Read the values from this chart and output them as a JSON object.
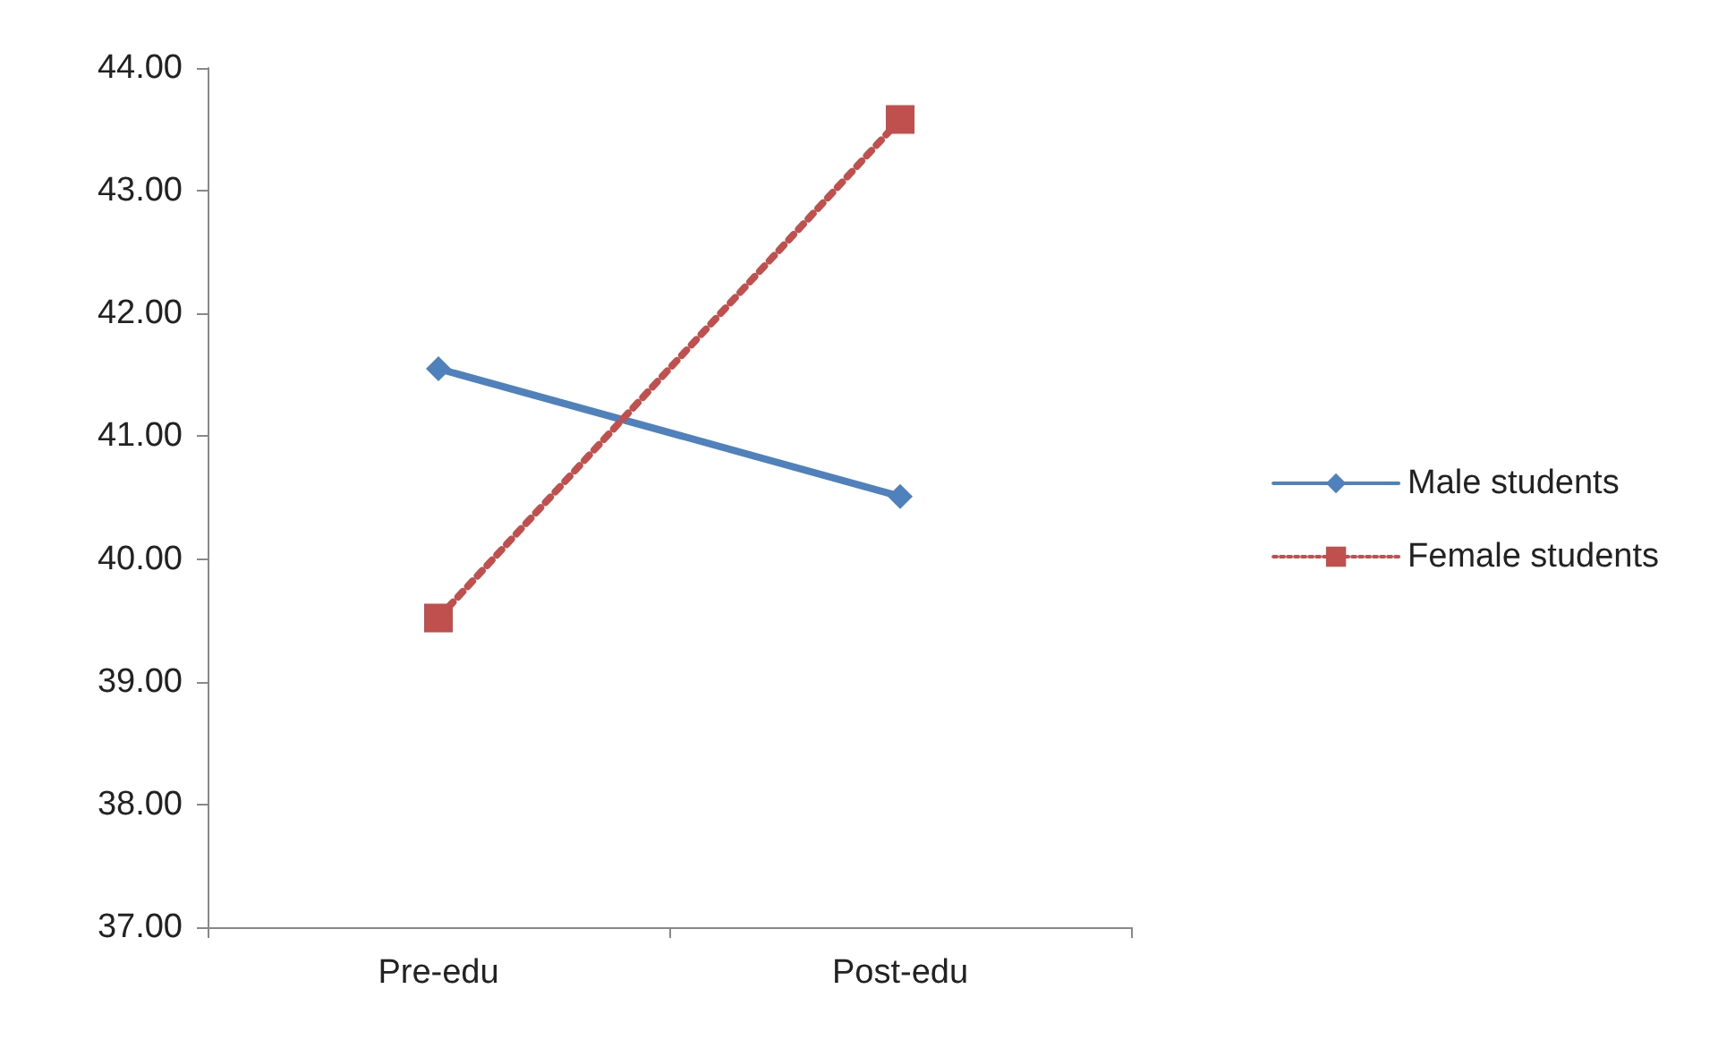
{
  "chart_data": {
    "type": "line",
    "categories": [
      "Pre-edu",
      "Post-edu"
    ],
    "series": [
      {
        "name": "Male students",
        "color": "#4f81bd",
        "values": [
          41.55,
          40.51
        ],
        "marker": "diamond",
        "line_style": "solid"
      },
      {
        "name": "Female students",
        "color": "#c0504d",
        "values": [
          39.52,
          43.58
        ],
        "marker": "square",
        "line_style": "dotted"
      }
    ],
    "ylim": [
      37,
      44
    ],
    "yticks": [
      {
        "value": 37,
        "label": "37.00"
      },
      {
        "value": 38,
        "label": "38.00"
      },
      {
        "value": 39,
        "label": "39.00"
      },
      {
        "value": 40,
        "label": "40.00"
      },
      {
        "value": 41,
        "label": "41.00"
      },
      {
        "value": 42,
        "label": "42.00"
      },
      {
        "value": 43,
        "label": "43.00"
      },
      {
        "value": 44,
        "label": "44.00"
      }
    ],
    "grid": false,
    "legend": "right"
  }
}
